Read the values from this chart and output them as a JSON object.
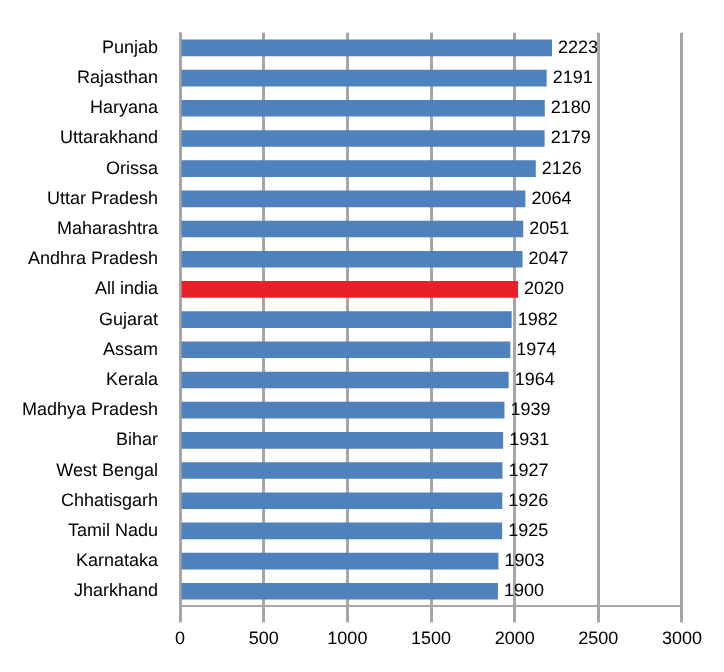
{
  "chart_data": {
    "type": "bar",
    "orientation": "horizontal",
    "categories": [
      "Punjab",
      "Rajasthan",
      "Haryana",
      "Uttarakhand",
      "Orissa",
      "Uttar Pradesh",
      "Maharashtra",
      "Andhra Pradesh",
      "All india",
      "Gujarat",
      "Assam",
      "Kerala",
      "Madhya Pradesh",
      "Bihar",
      "West Bengal",
      "Chhatisgarh",
      "Tamil Nadu",
      "Karnataka",
      "Jharkhand"
    ],
    "values": [
      2223,
      2191,
      2180,
      2179,
      2126,
      2064,
      2051,
      2047,
      2020,
      1982,
      1974,
      1964,
      1939,
      1931,
      1927,
      1926,
      1925,
      1903,
      1900
    ],
    "colors": [
      "#4f81bd",
      "#4f81bd",
      "#4f81bd",
      "#4f81bd",
      "#4f81bd",
      "#4f81bd",
      "#4f81bd",
      "#4f81bd",
      "#e8202a",
      "#4f81bd",
      "#4f81bd",
      "#4f81bd",
      "#4f81bd",
      "#4f81bd",
      "#4f81bd",
      "#4f81bd",
      "#4f81bd",
      "#4f81bd",
      "#4f81bd"
    ],
    "xlim": [
      0,
      3000
    ],
    "xticks": [
      0,
      500,
      1000,
      1500,
      2000,
      2500,
      3000
    ],
    "grid": "x",
    "data_labels": true,
    "legend": false
  }
}
